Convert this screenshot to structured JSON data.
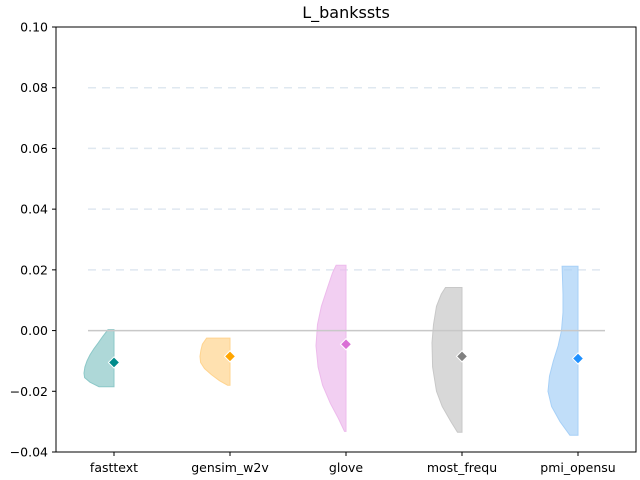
{
  "chart_data": {
    "type": "violin",
    "title": "L_bankssts",
    "xlabel": "",
    "ylabel": "",
    "ylim": [
      -0.04,
      0.1
    ],
    "y_ticks": [
      "0.10",
      "0.08",
      "0.06",
      "0.04",
      "0.02",
      "0.00",
      "−0.02",
      "−0.04"
    ],
    "y_tick_values": [
      0.1,
      0.08,
      0.06,
      0.04,
      0.02,
      0.0,
      -0.02,
      -0.04
    ],
    "grid_lines": [
      0.02,
      0.04,
      0.06,
      0.08
    ],
    "reference_line": 0.0,
    "categories": [
      "fasttext",
      "gensim_w2v",
      "glove",
      "most_frequ",
      "pmi_opensu"
    ],
    "series": [
      {
        "category": "fasttext",
        "median": -0.0105,
        "min": -0.0185,
        "max": 0.0003,
        "color": "#008B8B",
        "fill": "#8CC8C8",
        "profile": [
          [
            -0.0185,
            0.5
          ],
          [
            -0.017,
            0.8
          ],
          [
            -0.0155,
            0.98
          ],
          [
            -0.014,
            1.0
          ],
          [
            -0.012,
            0.97
          ],
          [
            -0.01,
            0.9
          ],
          [
            -0.008,
            0.8
          ],
          [
            -0.006,
            0.67
          ],
          [
            -0.004,
            0.52
          ],
          [
            -0.002,
            0.38
          ],
          [
            0.0003,
            0.2
          ]
        ]
      },
      {
        "category": "gensim_w2v",
        "median": -0.0085,
        "min": -0.018,
        "max": -0.0025,
        "color": "#FFA500",
        "fill": "#FFD48F",
        "profile": [
          [
            -0.018,
            0.08
          ],
          [
            -0.0165,
            0.35
          ],
          [
            -0.0145,
            0.62
          ],
          [
            -0.0125,
            0.85
          ],
          [
            -0.0105,
            0.98
          ],
          [
            -0.0085,
            1.0
          ],
          [
            -0.0065,
            0.97
          ],
          [
            -0.0045,
            0.92
          ],
          [
            -0.0025,
            0.78
          ]
        ]
      },
      {
        "category": "glove",
        "median": -0.0045,
        "min": -0.0332,
        "max": 0.0215,
        "color": "#DA70D6",
        "fill": "#EDBBEC",
        "profile": [
          [
            -0.0332,
            0.05
          ],
          [
            -0.029,
            0.25
          ],
          [
            -0.024,
            0.52
          ],
          [
            -0.018,
            0.78
          ],
          [
            -0.012,
            0.93
          ],
          [
            -0.005,
            1.0
          ],
          [
            0.002,
            0.95
          ],
          [
            0.008,
            0.82
          ],
          [
            0.014,
            0.62
          ],
          [
            0.019,
            0.45
          ],
          [
            0.0215,
            0.33
          ]
        ]
      },
      {
        "category": "most_frequ",
        "median": -0.0085,
        "min": -0.0335,
        "max": 0.0142,
        "color": "#808080",
        "fill": "#C8C8C8",
        "profile": [
          [
            -0.0335,
            0.15
          ],
          [
            -0.03,
            0.37
          ],
          [
            -0.025,
            0.66
          ],
          [
            -0.02,
            0.85
          ],
          [
            -0.012,
            0.98
          ],
          [
            -0.004,
            1.0
          ],
          [
            0.002,
            0.95
          ],
          [
            0.008,
            0.85
          ],
          [
            0.012,
            0.69
          ],
          [
            0.0142,
            0.55
          ]
        ]
      },
      {
        "category": "pmi_opensu",
        "median": -0.0092,
        "min": -0.0345,
        "max": 0.0212,
        "color": "#1E90FF",
        "fill": "#A7D0F7",
        "profile": [
          [
            -0.0345,
            0.27
          ],
          [
            -0.03,
            0.6
          ],
          [
            -0.025,
            0.88
          ],
          [
            -0.02,
            1.0
          ],
          [
            -0.015,
            0.95
          ],
          [
            -0.01,
            0.82
          ],
          [
            -0.005,
            0.66
          ],
          [
            0.0,
            0.55
          ],
          [
            0.006,
            0.5
          ],
          [
            0.012,
            0.5
          ],
          [
            0.0212,
            0.53
          ]
        ]
      }
    ]
  }
}
